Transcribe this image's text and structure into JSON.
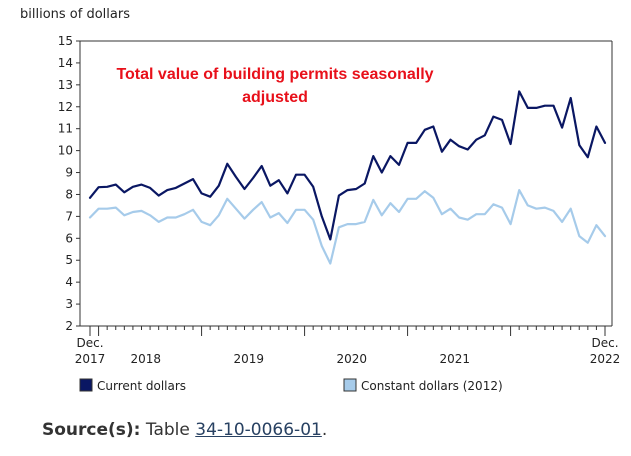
{
  "chart_data": {
    "type": "line",
    "title": "Total value of building permits seasonally adjusted",
    "title_lines": [
      "Total value of building permits seasonally",
      "adjusted"
    ],
    "ylabel": "billions of dollars",
    "ylim": [
      2,
      15
    ],
    "y_ticks": [
      2,
      3,
      4,
      5,
      6,
      7,
      8,
      9,
      10,
      11,
      12,
      13,
      14,
      15
    ],
    "x_tick_labels": [
      {
        "i": 0,
        "lines": [
          "Dec.",
          "2017"
        ]
      },
      {
        "i": 6.5,
        "lines": [
          "",
          "2018"
        ]
      },
      {
        "i": 18.5,
        "lines": [
          "",
          "2019"
        ]
      },
      {
        "i": 30.5,
        "lines": [
          "",
          "2020"
        ]
      },
      {
        "i": 42.5,
        "lines": [
          "",
          "2021"
        ]
      },
      {
        "i": 60,
        "lines": [
          "Dec.",
          "2022"
        ]
      }
    ],
    "x_range": [
      "Dec. 2017",
      "Dec. 2022"
    ],
    "grid": false,
    "legend_position": "bottom",
    "series": [
      {
        "name": "Current dollars",
        "color": "#0a1763",
        "legend_fill": "#0a1763",
        "values": [
          7.85,
          8.33,
          8.35,
          8.45,
          8.1,
          8.35,
          8.45,
          8.3,
          7.95,
          8.2,
          8.3,
          8.5,
          8.7,
          8.05,
          7.9,
          8.4,
          9.4,
          8.8,
          8.25,
          8.75,
          9.3,
          8.4,
          8.65,
          8.05,
          8.9,
          8.9,
          8.35,
          7.0,
          5.95,
          7.95,
          8.2,
          8.25,
          8.5,
          9.75,
          9.0,
          9.75,
          9.35,
          10.35,
          10.35,
          10.95,
          11.1,
          9.95,
          10.5,
          10.2,
          10.05,
          10.5,
          10.7,
          11.55,
          11.4,
          10.3,
          12.7,
          11.95,
          11.95,
          12.05,
          12.05,
          11.05,
          12.4,
          10.25,
          9.7,
          11.1,
          10.35
        ]
      },
      {
        "name": "Constant dollars (2012)",
        "color": "#a6cbea",
        "legend_fill": "#a6cbea",
        "values": [
          6.95,
          7.35,
          7.35,
          7.4,
          7.05,
          7.2,
          7.25,
          7.05,
          6.75,
          6.95,
          6.95,
          7.1,
          7.3,
          6.75,
          6.6,
          7.05,
          7.8,
          7.35,
          6.9,
          7.3,
          7.65,
          6.95,
          7.15,
          6.7,
          7.3,
          7.3,
          6.85,
          5.65,
          4.85,
          6.5,
          6.65,
          6.65,
          6.75,
          7.75,
          7.05,
          7.6,
          7.2,
          7.8,
          7.8,
          8.15,
          7.85,
          7.1,
          7.35,
          6.95,
          6.85,
          7.1,
          7.1,
          7.55,
          7.4,
          6.65,
          8.2,
          7.5,
          7.35,
          7.4,
          7.25,
          6.75,
          7.35,
          6.1,
          5.8,
          6.6,
          6.1
        ]
      }
    ]
  },
  "source": {
    "label": "Source(s):",
    "prefix": "Table",
    "link_text": "34-10-0066-01",
    "suffix": "."
  }
}
